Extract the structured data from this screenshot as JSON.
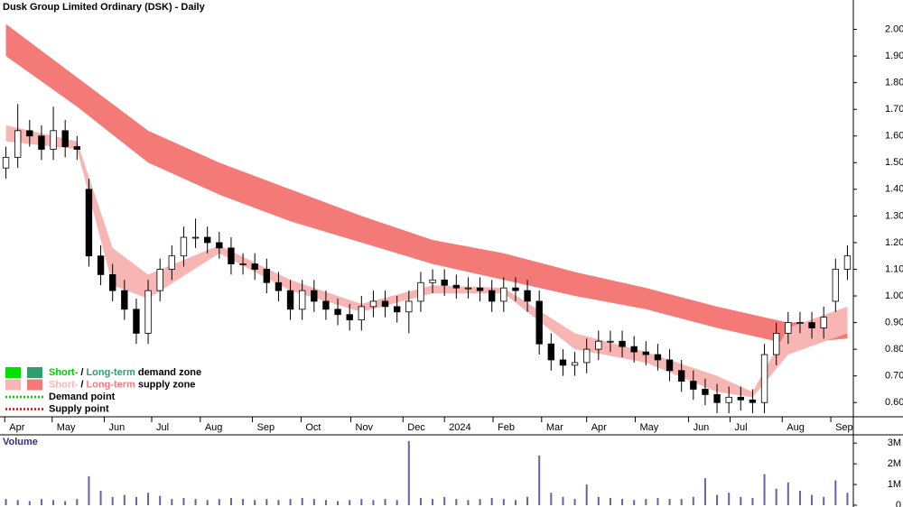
{
  "chart_data": {
    "type": "candlestick",
    "title": "Dusk Group Limited Ordinary (DSK) - Daily",
    "volume_title": "Volume",
    "xlim": [
      0,
      72
    ],
    "xticks": [
      {
        "value": 0.4,
        "label": "Apr"
      },
      {
        "value": 4.4,
        "label": "May"
      },
      {
        "value": 8.8,
        "label": "Jun"
      },
      {
        "value": 12.8,
        "label": "Jul"
      },
      {
        "value": 16.9,
        "label": "Aug"
      },
      {
        "value": 21.3,
        "label": "Sep"
      },
      {
        "value": 25.4,
        "label": "Oct"
      },
      {
        "value": 29.6,
        "label": "Nov"
      },
      {
        "value": 34.0,
        "label": "Dec"
      },
      {
        "value": 37.5,
        "label": "2024"
      },
      {
        "value": 41.6,
        "label": "Feb"
      },
      {
        "value": 45.7,
        "label": "Mar"
      },
      {
        "value": 49.5,
        "label": "Apr"
      },
      {
        "value": 53.6,
        "label": "May"
      },
      {
        "value": 58.1,
        "label": "Jun"
      },
      {
        "value": 61.6,
        "label": "Jul"
      },
      {
        "value": 66.0,
        "label": "Aug"
      },
      {
        "value": 70.1,
        "label": "Sep"
      }
    ],
    "ylim": [
      0.55,
      2.1
    ],
    "yticks": [
      {
        "value": 0.6,
        "label": "0.60"
      },
      {
        "value": 0.7,
        "label": "0.70"
      },
      {
        "value": 0.8,
        "label": "0.80"
      },
      {
        "value": 0.9,
        "label": "0.90"
      },
      {
        "value": 1.0,
        "label": "1.00"
      },
      {
        "value": 1.1,
        "label": "1.10"
      },
      {
        "value": 1.2,
        "label": "1.20"
      },
      {
        "value": 1.3,
        "label": "1.30"
      },
      {
        "value": 1.4,
        "label": "1.40"
      },
      {
        "value": 1.5,
        "label": "1.50"
      },
      {
        "value": 1.6,
        "label": "1.60"
      },
      {
        "value": 1.7,
        "label": "1.70"
      },
      {
        "value": 1.8,
        "label": "1.80"
      },
      {
        "value": 1.9,
        "label": "1.90"
      },
      {
        "value": 2.0,
        "label": "2.00"
      }
    ],
    "volume_ylim": [
      0,
      3400000
    ],
    "volume_yticks": [
      0,
      {
        "value": 1000000,
        "label": "1M"
      },
      {
        "value": 2000000,
        "label": "2M"
      },
      {
        "value": 3000000,
        "label": "3M"
      }
    ],
    "up_color": "#ffffff",
    "down_color": "#000000",
    "volume_color": "#6b5fa8",
    "open": [
      1.48,
      1.52,
      1.62,
      1.6,
      1.55,
      1.62,
      1.56,
      1.4,
      1.15,
      1.08,
      1.02,
      0.95,
      0.86,
      1.02,
      1.1,
      1.15,
      1.22,
      1.22,
      1.2,
      1.18,
      1.12,
      1.12,
      1.1,
      1.05,
      1.02,
      0.95,
      1.02,
      0.98,
      0.95,
      0.93,
      0.91,
      0.96,
      0.98,
      0.96,
      0.94,
      0.98,
      1.05,
      1.06,
      1.04,
      1.03,
      1.03,
      1.02,
      0.98,
      1.03,
      1.02,
      0.98,
      0.82,
      0.76,
      0.74,
      0.75,
      0.8,
      0.83,
      0.83,
      0.81,
      0.79,
      0.78,
      0.76,
      0.72,
      0.68,
      0.65,
      0.63,
      0.6,
      0.62,
      0.61,
      0.6,
      0.78,
      0.86,
      0.9,
      0.9,
      0.88,
      0.98,
      1.1
    ],
    "high": [
      1.56,
      1.72,
      1.66,
      1.64,
      1.71,
      1.66,
      1.6,
      1.44,
      1.19,
      1.12,
      1.06,
      0.99,
      1.06,
      1.14,
      1.19,
      1.26,
      1.29,
      1.26,
      1.24,
      1.22,
      1.16,
      1.16,
      1.14,
      1.09,
      1.06,
      1.06,
      1.06,
      1.02,
      0.99,
      0.97,
      1.0,
      1.02,
      1.02,
      1.0,
      1.02,
      1.09,
      1.1,
      1.1,
      1.08,
      1.07,
      1.07,
      1.06,
      1.07,
      1.07,
      1.06,
      1.02,
      0.86,
      0.8,
      0.79,
      0.84,
      0.87,
      0.87,
      0.87,
      0.85,
      0.83,
      0.82,
      0.8,
      0.76,
      0.72,
      0.69,
      0.67,
      0.66,
      0.66,
      0.65,
      0.82,
      0.9,
      0.94,
      0.94,
      0.94,
      0.96,
      1.14,
      1.19
    ],
    "low": [
      1.44,
      1.48,
      1.56,
      1.51,
      1.51,
      1.52,
      1.51,
      1.11,
      1.04,
      0.98,
      0.91,
      0.82,
      0.82,
      0.98,
      1.06,
      1.11,
      1.18,
      1.16,
      1.14,
      1.08,
      1.08,
      1.06,
      1.01,
      0.98,
      0.91,
      0.91,
      0.94,
      0.91,
      0.89,
      0.87,
      0.87,
      0.92,
      0.92,
      0.9,
      0.86,
      0.94,
      1.01,
      1.0,
      0.99,
      0.99,
      0.98,
      0.94,
      0.94,
      0.98,
      0.94,
      0.78,
      0.72,
      0.7,
      0.7,
      0.71,
      0.76,
      0.79,
      0.77,
      0.75,
      0.74,
      0.72,
      0.68,
      0.64,
      0.61,
      0.59,
      0.56,
      0.56,
      0.57,
      0.56,
      0.56,
      0.74,
      0.82,
      0.86,
      0.84,
      0.84,
      0.94,
      1.06
    ],
    "close": [
      1.52,
      1.62,
      1.6,
      1.55,
      1.62,
      1.56,
      1.55,
      1.15,
      1.08,
      1.02,
      0.95,
      0.86,
      1.02,
      1.1,
      1.15,
      1.22,
      1.22,
      1.2,
      1.18,
      1.12,
      1.12,
      1.1,
      1.05,
      1.02,
      0.95,
      1.02,
      0.98,
      0.95,
      0.93,
      0.91,
      0.96,
      0.98,
      0.96,
      0.94,
      0.98,
      1.05,
      1.06,
      1.04,
      1.03,
      1.03,
      1.02,
      0.98,
      1.03,
      1.02,
      0.98,
      0.82,
      0.76,
      0.74,
      0.75,
      0.8,
      0.83,
      0.83,
      0.81,
      0.79,
      0.78,
      0.76,
      0.72,
      0.68,
      0.65,
      0.63,
      0.6,
      0.62,
      0.61,
      0.6,
      0.78,
      0.86,
      0.9,
      0.9,
      0.88,
      0.92,
      1.1,
      1.15
    ],
    "volume": [
      300000,
      250000,
      200000,
      300000,
      250000,
      200000,
      300000,
      1400000,
      700000,
      400000,
      500000,
      400000,
      600000,
      450000,
      300000,
      350000,
      300000,
      250000,
      300000,
      350000,
      300000,
      250000,
      300000,
      250000,
      300000,
      350000,
      300000,
      250000,
      200000,
      250000,
      300000,
      250000,
      300000,
      250000,
      3100000,
      350000,
      300000,
      400000,
      300000,
      250000,
      300000,
      350000,
      300000,
      250000,
      400000,
      2400000,
      600000,
      400000,
      300000,
      1000000,
      400000,
      350000,
      300000,
      250000,
      300000,
      350000,
      300000,
      300000,
      400000,
      1300000,
      500000,
      600000,
      400000,
      350000,
      1500000,
      800000,
      1100000,
      700000,
      500000,
      400000,
      1200000,
      600000
    ],
    "bands": [
      {
        "color": "#f47a78",
        "x": [
          0.5,
          6.5,
          12.5,
          18.5,
          24.5,
          30.5,
          36.5,
          42.5,
          48.5,
          54.5,
          60.5,
          66.5,
          71.5
        ],
        "upper": [
          2.02,
          1.82,
          1.62,
          1.5,
          1.4,
          1.3,
          1.21,
          1.16,
          1.09,
          1.03,
          0.96,
          0.9,
          0.91
        ],
        "lower": [
          1.9,
          1.71,
          1.5,
          1.38,
          1.28,
          1.2,
          1.12,
          1.06,
          1.0,
          0.95,
          0.88,
          0.82,
          0.84
        ]
      },
      {
        "color": "#f7b6b4",
        "x": [
          0.5,
          6.5,
          9.5,
          12.5,
          18.5,
          24.5,
          30.5,
          36.5,
          42.5,
          48.5,
          54.5,
          60.5,
          63.5,
          66.5,
          71.5
        ],
        "upper": [
          1.64,
          1.58,
          1.18,
          1.08,
          1.19,
          1.06,
          0.97,
          1.04,
          1.03,
          0.86,
          0.79,
          0.7,
          0.64,
          0.88,
          0.96
        ],
        "lower": [
          1.58,
          1.55,
          1.04,
          0.99,
          1.16,
          1.02,
          0.94,
          1.01,
          1.01,
          0.8,
          0.75,
          0.64,
          0.62,
          0.78,
          0.86
        ]
      }
    ],
    "legend": [
      {
        "short": "Short-",
        "separator": "/",
        "long": "Long-term",
        "rest": "demand zone",
        "short_color": "#00e000",
        "long_color": "#2e9e6e",
        "text_short_color": "#00cc00",
        "text_long_color": "#2e9e6e"
      },
      {
        "short": "Short-",
        "separator": "/",
        "long": "Long-term",
        "rest": "supply zone",
        "short_color": "#f7b6b4",
        "long_color": "#f47a78",
        "text_short_color": "#f7b6b4",
        "text_long_color": "#f47a78"
      },
      {
        "label": "Demand point",
        "color": "#00cc00"
      },
      {
        "label": "Supply point",
        "color": "#e00000"
      }
    ]
  }
}
